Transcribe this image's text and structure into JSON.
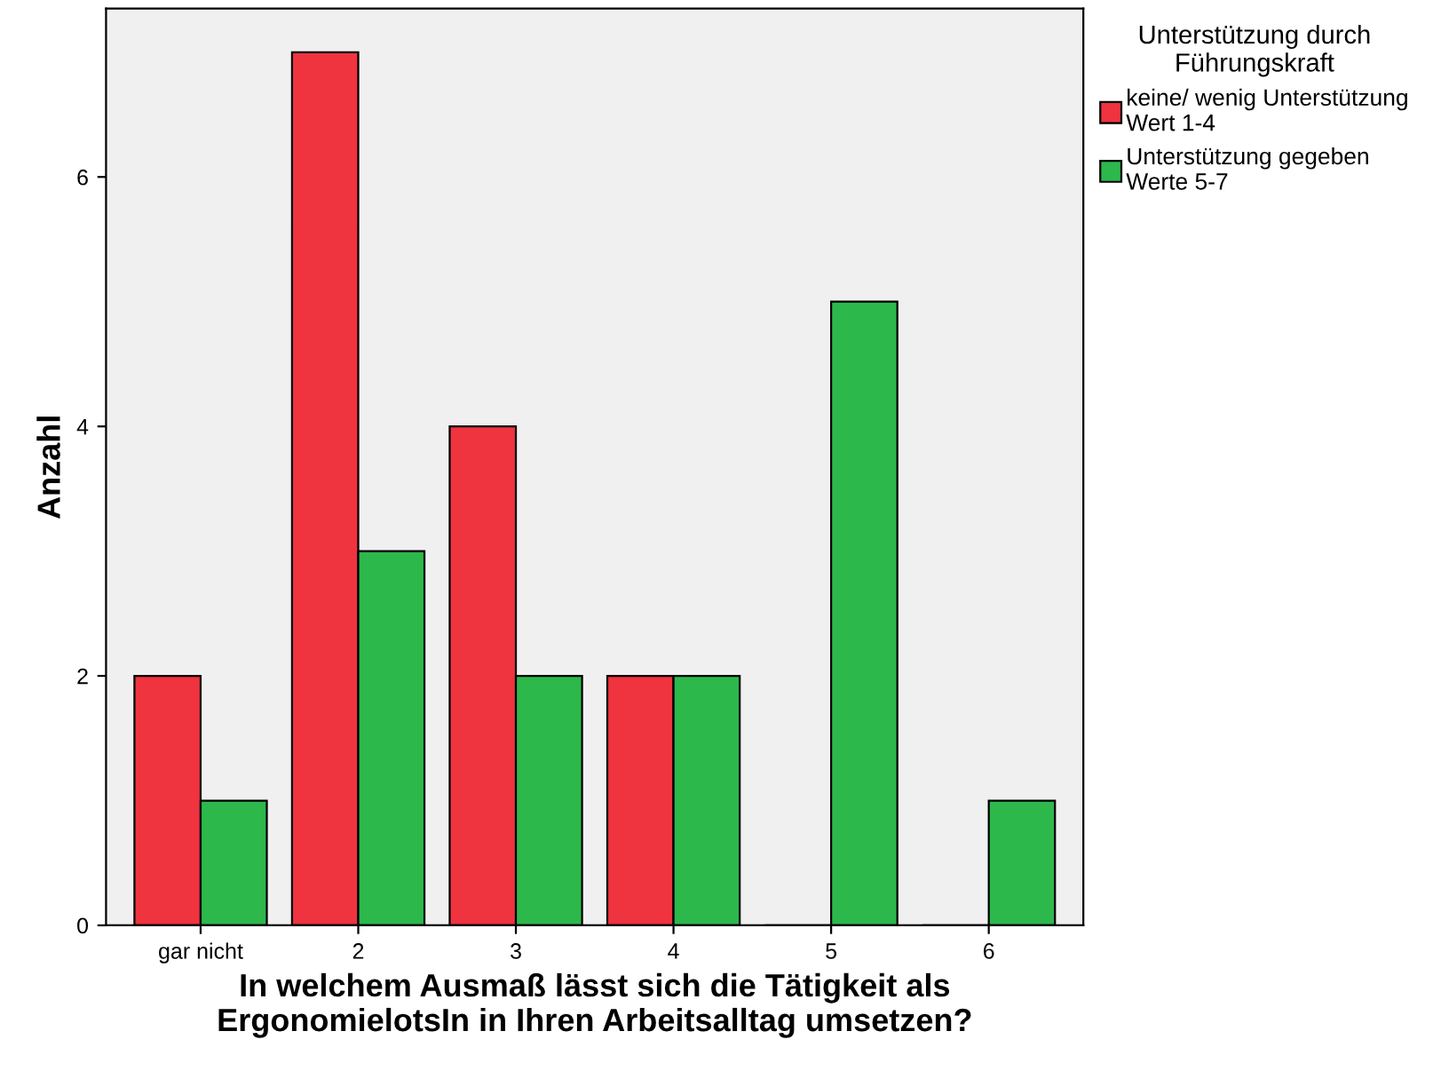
{
  "chart_data": {
    "type": "bar",
    "xlabel": "In welchem Ausmaß lässt sich die Tätigkeit als\nErgonomielotsIn in Ihren Arbeitsalltag umsetzen?",
    "ylabel": "Anzahl",
    "legend_title": "Unterstützung durch\nFührungskraft",
    "categories": [
      "gar nicht",
      "2",
      "3",
      "4",
      "5",
      "6"
    ],
    "series": [
      {
        "name": "keine/ wenig Unterstützung\nWert 1-4",
        "color": "#ef333f",
        "values": [
          2,
          7,
          4,
          2,
          0,
          0
        ]
      },
      {
        "name": "Unterstützung gegeben\nWerte 5-7",
        "color": "#2db84c",
        "values": [
          1,
          3,
          2,
          2,
          5,
          1
        ]
      }
    ],
    "ylim": [
      0,
      7.35
    ],
    "yticks": [
      0,
      2,
      4,
      6
    ],
    "grid": false,
    "legend": "top right"
  }
}
